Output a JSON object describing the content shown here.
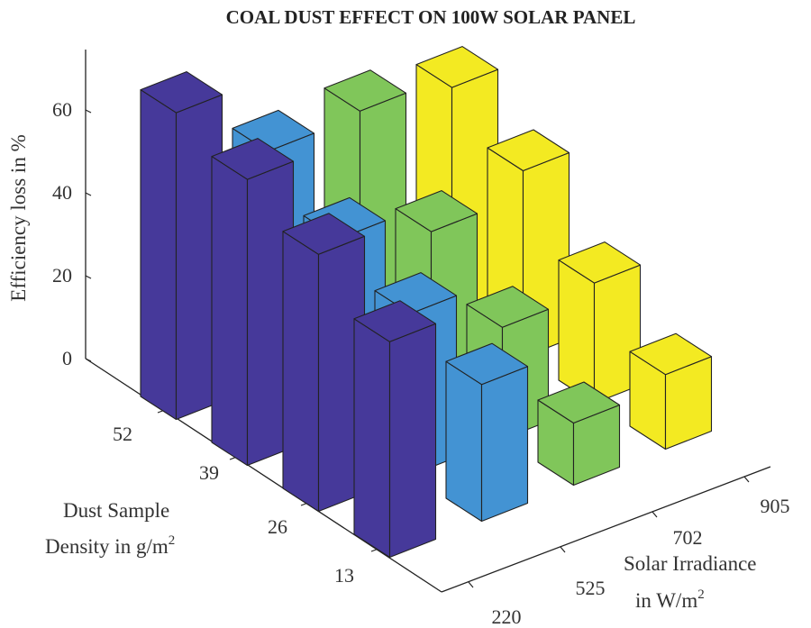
{
  "chart_data": {
    "type": "bar3d",
    "title": "COAL DUST EFFECT ON 100W SOLAR PANEL",
    "zlabel": "Efficiency loss in %",
    "ylabel_line1": "Dust Sample",
    "ylabel_line2": "Density in g/m",
    "ylabel_sup": "2",
    "xlabel_line1": "Solar Irradiance",
    "xlabel_line2": "in W/m",
    "xlabel_sup": "2",
    "density_ticks": [
      "52",
      "39",
      "26",
      "13"
    ],
    "irradiance_ticks": [
      "220",
      "525",
      "702",
      "905"
    ],
    "z_ticks": [
      "0",
      "20",
      "40",
      "60"
    ],
    "z_tick_values": [
      0,
      20,
      40,
      60
    ],
    "zlim": [
      0,
      74
    ],
    "colors": [
      "#46399a",
      "#4393d3",
      "#80c65a",
      "#f3ea22"
    ],
    "series": [
      {
        "name": "220",
        "values": [
          74,
          69,
          62,
          52
        ]
      },
      {
        "name": "525",
        "values": [
          56,
          46,
          39,
          33
        ]
      },
      {
        "name": "702",
        "values": [
          57,
          39,
          27,
          15
        ]
      },
      {
        "name": "905",
        "values": [
          54,
          45,
          29,
          18
        ]
      }
    ]
  }
}
